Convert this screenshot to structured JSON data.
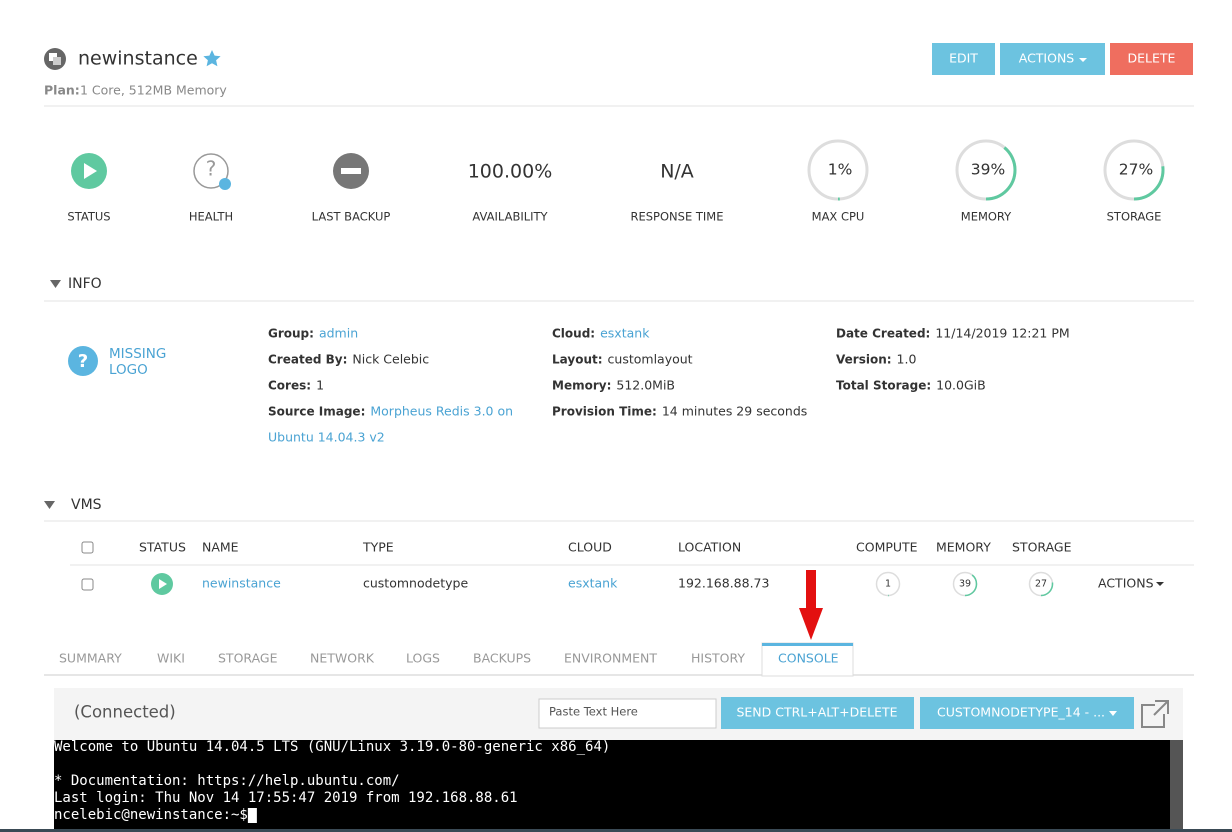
{
  "header": {
    "title": "newinstance",
    "plan_label": "Plan:",
    "plan": "1 Core, 512MB Memory",
    "buttons": [
      "EDIT",
      "ACTIONS",
      "DELETE"
    ]
  },
  "stats": [
    {
      "label": "STATUS"
    },
    {
      "label": "HEALTH"
    },
    {
      "label": "LAST BACKUP"
    },
    {
      "text": "100.00%",
      "label": "AVAILABILITY"
    },
    {
      "text": "N/A",
      "label": "RESPONSE TIME"
    },
    {
      "value": 1,
      "value_label": "1%",
      "label": "MAX CPU"
    },
    {
      "value": 39,
      "value_label": "39%",
      "label": "MEMORY"
    },
    {
      "value": 27,
      "value_label": "27%",
      "label": "STORAGE"
    }
  ],
  "info": {
    "heading": "INFO",
    "logo": [
      "MISSING",
      "LOGO"
    ],
    "columns": [
      [
        {
          "label": "Group:",
          "value": "admin"
        },
        {
          "label": "Created By:",
          "value": "Nick Celebic"
        },
        {
          "label": "Cores:",
          "value": "1"
        },
        {
          "label": "Source Image:",
          "value_lines": [
            "Morpheus Redis 3.0 on",
            "Ubuntu 14.04.3 v2"
          ]
        }
      ],
      [
        {
          "label": "Cloud:",
          "value": "esxtank"
        },
        {
          "label": "Layout:",
          "value": "customlayout"
        },
        {
          "label": "Memory:",
          "value": "512.0MiB"
        },
        {
          "label": "Provision Time:",
          "value": "14 minutes 29 seconds"
        }
      ],
      [
        {
          "label": "Date Created:",
          "value": "11/14/2019 12:21 PM"
        },
        {
          "label": "Version:",
          "value": "1.0"
        },
        {
          "label": "Total Storage:",
          "value": "10.0GiB"
        }
      ]
    ]
  },
  "vms": {
    "heading": "VMS",
    "columns": [
      "STATUS",
      "NAME",
      "TYPE",
      "CLOUD",
      "LOCATION",
      "COMPUTE",
      "MEMORY",
      "STORAGE"
    ],
    "rows": [
      {
        "name": "newinstance",
        "type": "customnodetype",
        "cloud": "esxtank",
        "location": "192.168.88.73",
        "compute": 1,
        "memory": 39,
        "storage": 27,
        "actions": "ACTIONS"
      }
    ]
  },
  "tabs": {
    "items": [
      "SUMMARY",
      "WIKI",
      "STORAGE",
      "NETWORK",
      "LOGS",
      "BACKUPS",
      "ENVIRONMENT",
      "HISTORY",
      "CONSOLE"
    ],
    "active": "CONSOLE"
  },
  "console": {
    "status": "(Connected)",
    "paste_placeholder": "Paste Text Here",
    "send": "SEND CTRL+ALT+DELETE",
    "node": "CUSTOMNODETYPE_14 - ...",
    "lines": [
      "Welcome to Ubuntu 14.04.5 LTS (GNU/Linux 3.19.0-80-generic x86_64)",
      " * Documentation:  https://help.ubuntu.com/",
      "Last login: Thu Nov 14 17:55:47 2019 from 192.168.88.61",
      "ncelebic@newinstance:~$ "
    ]
  }
}
